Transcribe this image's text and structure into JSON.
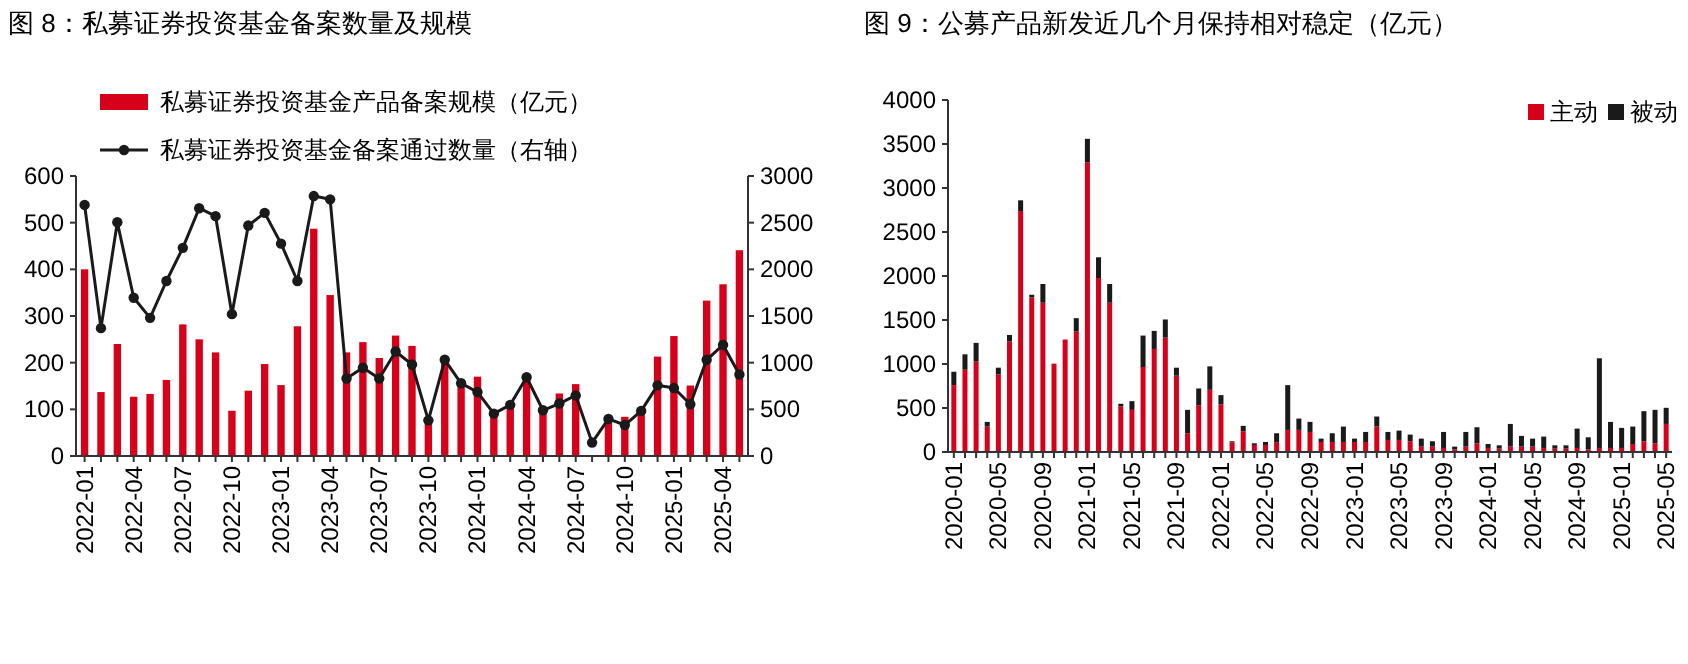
{
  "chart_data": [
    {
      "type": "bar",
      "title": "图 8：私募证券投资基金备案数量及规模",
      "categories": [
        "2022-01",
        null,
        null,
        "2022-04",
        null,
        null,
        "2022-07",
        null,
        null,
        "2022-10",
        null,
        null,
        "2023-01",
        null,
        null,
        "2023-04",
        null,
        null,
        "2023-07",
        null,
        null,
        "2023-10",
        null,
        null,
        "2024-01",
        null,
        null,
        "2024-04",
        null,
        null,
        "2024-07",
        null,
        null,
        "2024-10",
        null,
        null,
        "2025-01",
        null,
        null,
        "2025-04",
        null
      ],
      "series": [
        {
          "name": "私募证券投资基金产品备案规模（亿元）",
          "type": "bar",
          "color": "#d7001a",
          "values": [
            400,
            137,
            240,
            127,
            133,
            163,
            282,
            250,
            222,
            97,
            140,
            197,
            152,
            278,
            487,
            345,
            222,
            244,
            210,
            258,
            236,
            70,
            209,
            163,
            170,
            94,
            111,
            175,
            94,
            134,
            154,
            null,
            84,
            84,
            98,
            213,
            257,
            151,
            333,
            368,
            441
          ]
        },
        {
          "name": "私募证券投资基金备案通过数量（右轴）",
          "type": "line",
          "axis": "y2",
          "color": "#1a1a1a",
          "marker": "circle",
          "values": [
            2690,
            1370,
            2505,
            1695,
            1480,
            1875,
            2230,
            2655,
            2570,
            1520,
            2470,
            2605,
            2275,
            1875,
            2785,
            2750,
            830,
            945,
            830,
            1120,
            980,
            382,
            1031,
            779,
            685,
            454,
            548,
            844,
            490,
            562,
            649,
            144,
            397,
            332,
            483,
            757,
            728,
            555,
            1031,
            1190,
            873
          ]
        }
      ],
      "ylim": [
        0,
        600
      ],
      "yticks": [
        0,
        100,
        200,
        300,
        400,
        500,
        600
      ],
      "y2lim": [
        0,
        3000
      ],
      "y2ticks": [
        0,
        500,
        1000,
        1500,
        2000,
        2500,
        3000
      ],
      "legend": "top left",
      "grid": false
    },
    {
      "type": "bar",
      "title": "图 9：公募产品新发近几个月保持相对稳定（亿元）",
      "stacked": true,
      "categories": [
        "2020-01",
        null,
        null,
        null,
        "2020-05",
        null,
        null,
        null,
        "2020-09",
        null,
        null,
        null,
        "2021-01",
        null,
        null,
        null,
        "2021-05",
        null,
        null,
        null,
        "2021-09",
        null,
        null,
        null,
        "2022-01",
        null,
        null,
        null,
        "2022-05",
        null,
        null,
        null,
        "2022-09",
        null,
        null,
        null,
        "2023-01",
        null,
        null,
        null,
        "2023-05",
        null,
        null,
        null,
        "2023-09",
        null,
        null,
        null,
        "2024-01",
        null,
        null,
        null,
        "2024-05",
        null,
        null,
        null,
        "2024-09",
        null,
        null,
        null,
        "2025-01",
        null,
        null,
        null,
        "2025-05"
      ],
      "series": [
        {
          "name": "主动",
          "color": "#d7001a",
          "values": [
            760,
            935,
            1027,
            289,
            882,
            1255,
            2738,
            1757,
            1696,
            1004,
            1278,
            1369,
            3293,
            1977,
            1696,
            517,
            479,
            966,
            1171,
            1300,
            867,
            213,
            532,
            707,
            540,
            110,
            236,
            80,
            80,
            106,
            251,
            251,
            228,
            114,
            114,
            114,
            114,
            114,
            289,
            137,
            137,
            122,
            61,
            61,
            46,
            30,
            61,
            99,
            46,
            38,
            61,
            61,
            61,
            46,
            38,
            38,
            46,
            30,
            46,
            46,
            46,
            91,
            122,
            99,
            319
          ]
        },
        {
          "name": "被动",
          "color": "#1a1a1a",
          "values": [
            152,
            175,
            213,
            53,
            76,
            75,
            122,
            30,
            213,
            0,
            0,
            152,
            266,
            236,
            213,
            31,
            99,
            357,
            205,
            206,
            91,
            266,
            190,
            266,
            106,
            12,
            61,
            19,
            34,
            107,
            509,
            129,
            114,
            38,
            99,
            175,
            38,
            114,
            114,
            91,
            106,
            76,
            91,
            61,
            182,
            31,
            167,
            182,
            45,
            38,
            258,
            122,
            91,
            129,
            38,
            38,
            220,
            137,
            1019,
            296,
            228,
            198,
            342,
            380,
            183
          ]
        }
      ],
      "ylim": [
        0,
        4000
      ],
      "yticks": [
        0,
        500,
        1000,
        1500,
        2000,
        2500,
        3000,
        3500,
        4000
      ],
      "legend": "top right",
      "grid": false
    }
  ]
}
